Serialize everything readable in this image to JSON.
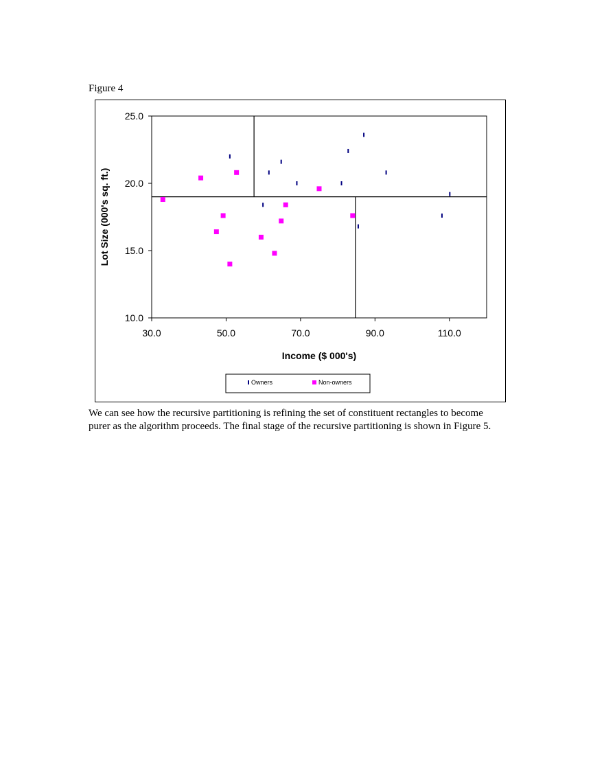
{
  "figure_caption": "Figure 4",
  "chart_data": {
    "type": "scatter",
    "xlabel": "Income ($ 000's)",
    "ylabel": "Lot Size (000's sq. ft.)",
    "xlim": [
      30,
      120
    ],
    "ylim": [
      10,
      25
    ],
    "x_ticks": [
      "30.0",
      "50.0",
      "70.0",
      "90.0",
      "110.0"
    ],
    "x_tick_values": [
      30,
      50,
      70,
      90,
      110
    ],
    "y_ticks": [
      "10.0",
      "15.0",
      "20.0",
      "25.0"
    ],
    "y_tick_values": [
      10,
      15,
      20,
      25
    ],
    "grid": false,
    "legend_placement": "bottom",
    "series": [
      {
        "name": "Owners",
        "marker": "dash",
        "color": "#000080",
        "points": [
          [
            51.0,
            22.0
          ],
          [
            61.5,
            20.8
          ],
          [
            64.8,
            21.6
          ],
          [
            69.0,
            20.0
          ],
          [
            59.9,
            18.4
          ],
          [
            82.8,
            22.4
          ],
          [
            81.0,
            20.0
          ],
          [
            87.0,
            23.6
          ],
          [
            93.0,
            20.8
          ],
          [
            85.5,
            16.8
          ],
          [
            108.0,
            17.6
          ],
          [
            110.1,
            19.2
          ]
        ]
      },
      {
        "name": "Non-owners",
        "marker": "square",
        "color": "#ff00ff",
        "points": [
          [
            33.0,
            18.8
          ],
          [
            43.2,
            20.4
          ],
          [
            52.8,
            20.8
          ],
          [
            49.2,
            17.6
          ],
          [
            47.4,
            16.4
          ],
          [
            51.0,
            14.0
          ],
          [
            59.4,
            16.0
          ],
          [
            63.0,
            14.8
          ],
          [
            64.8,
            17.2
          ],
          [
            66.0,
            18.4
          ],
          [
            75.0,
            19.6
          ],
          [
            84.0,
            17.6
          ]
        ]
      }
    ],
    "partitions": [
      {
        "type": "h",
        "y": 19.0,
        "x_from": 30,
        "x_to": 120
      },
      {
        "type": "v",
        "x": 57.5,
        "y_from": 19.0,
        "y_to": 25
      },
      {
        "type": "v",
        "x": 84.75,
        "y_from": 10,
        "y_to": 19.0
      }
    ]
  },
  "body_text": "We can see how the recursive partitioning is refining the set of constituent rectangles to become\npurer as the algorithm proceeds. The final stage of the recursive partitioning is shown in Figure 5."
}
